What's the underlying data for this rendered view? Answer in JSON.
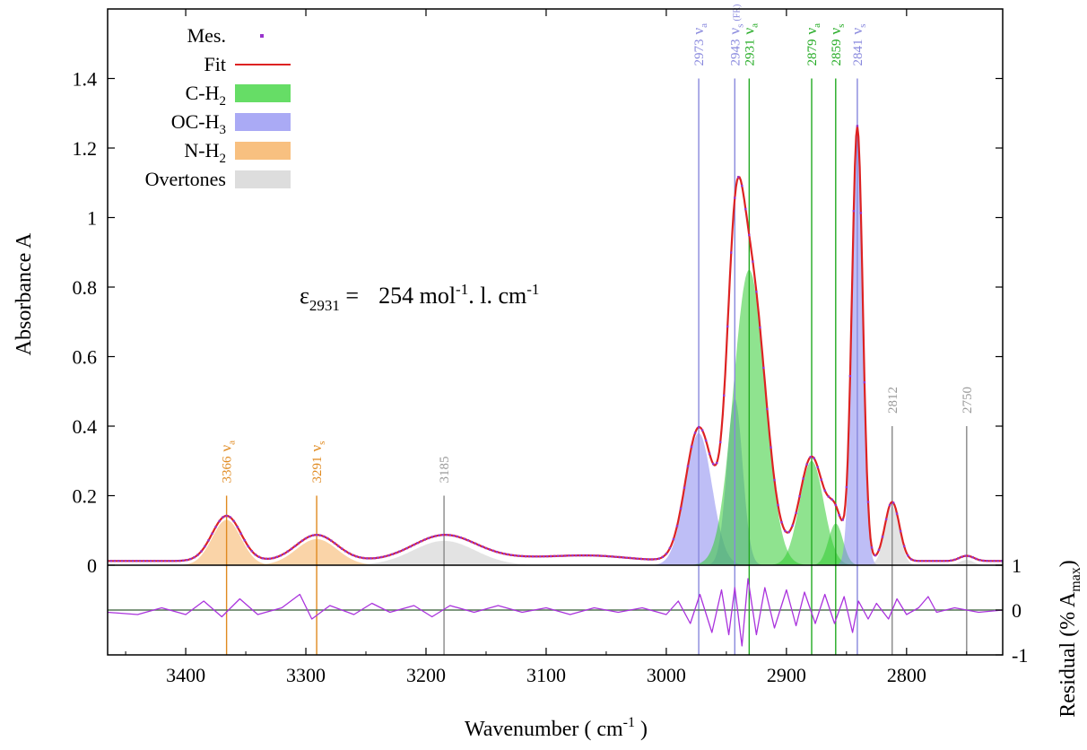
{
  "chart_data": {
    "type": "line",
    "xlabel": "Wavenumber  ( cm",
    "xlabel_sup": "-1",
    "xlabel_end": " )",
    "ylabel": "Absorbance  A",
    "residual_ylabel": "Residual (% A",
    "residual_ylabel_sub": "max",
    "residual_ylabel_end": ")",
    "x_reversed": true,
    "xlim": [
      3465,
      2720
    ],
    "ylim": [
      -0.0,
      1.6
    ],
    "x_ticks": [
      3400,
      3300,
      3200,
      3100,
      3000,
      2900,
      2800
    ],
    "y_ticks": [
      {
        "v": 0,
        "label": "0"
      },
      {
        "v": 0.2,
        "label": "0.2"
      },
      {
        "v": 0.4,
        "label": "0.4"
      },
      {
        "v": 0.6,
        "label": "0.6"
      },
      {
        "v": 0.8,
        "label": "0.8"
      },
      {
        "v": 1.0,
        "label": "1"
      },
      {
        "v": 1.2,
        "label": "1.2"
      },
      {
        "v": 1.4,
        "label": "1.4"
      }
    ],
    "residual_ticks": [
      {
        "v": 1,
        "label": "1"
      },
      {
        "v": 0,
        "label": "0"
      },
      {
        "v": -1,
        "label": "-1"
      }
    ],
    "annotation": {
      "symbol": "ε",
      "sub": "2931",
      "eq": " =",
      "value_pre": "254 mol",
      "sup1": "-1",
      "value_mid": ". l. cm",
      "sup2": "-1"
    },
    "colors": {
      "measure": "#9933cc",
      "fit": "#dd2222",
      "ch2": "#33cc33",
      "och3": "#7777ee",
      "nh2": "#f0a040",
      "overtone": "#bbbbbb",
      "residual": "#aa33dd"
    },
    "legend": {
      "position": "top-left",
      "entries": [
        {
          "label": "Mes.",
          "sub": "",
          "kind": "point",
          "color": "#9933cc"
        },
        {
          "label": "Fit",
          "sub": "",
          "kind": "line",
          "color": "#dd2222"
        },
        {
          "label": "C-H",
          "sub": "2",
          "kind": "fill",
          "color": "#66dd66"
        },
        {
          "label": "OC-H",
          "sub": "3",
          "kind": "fill",
          "color": "#aaaaf5"
        },
        {
          "label": "N-H",
          "sub": "2",
          "kind": "fill",
          "color": "#f8c080"
        },
        {
          "label": "Overtones",
          "sub": "",
          "kind": "fill",
          "color": "#dddddd"
        }
      ]
    },
    "components": [
      {
        "group": "N-H2",
        "center": 3366,
        "amp": 0.13,
        "sigma": 12
      },
      {
        "group": "N-H2",
        "center": 3291,
        "amp": 0.075,
        "sigma": 17
      },
      {
        "group": "Overtones",
        "center": 3185,
        "amp": 0.07,
        "sigma": 26
      },
      {
        "group": "OC-H3",
        "center": 2973,
        "amp": 0.38,
        "sigma": 11
      },
      {
        "group": "OC-H3",
        "center": 2943,
        "amp": 0.48,
        "sigma": 6.5
      },
      {
        "group": "C-H2",
        "center": 2931,
        "amp": 0.85,
        "sigma": 13
      },
      {
        "group": "C-H2",
        "center": 2879,
        "amp": 0.3,
        "sigma": 10
      },
      {
        "group": "C-H2",
        "center": 2859,
        "amp": 0.12,
        "sigma": 6
      },
      {
        "group": "OC-H3",
        "center": 2841,
        "amp": 1.25,
        "sigma": 4.5
      },
      {
        "group": "Overtones",
        "center": 2812,
        "amp": 0.17,
        "sigma": 6
      },
      {
        "group": "Overtones",
        "center": 2750,
        "amp": 0.015,
        "sigma": 6
      }
    ],
    "peak_markers": [
      {
        "x": 3366,
        "top": 0.2,
        "label": "3366",
        "mode": "a",
        "group": "N-H2"
      },
      {
        "x": 3291,
        "top": 0.2,
        "label": "3291",
        "mode": "s",
        "group": "N-H2"
      },
      {
        "x": 3185,
        "top": 0.2,
        "label": "3185",
        "mode": "",
        "group": "Overtones"
      },
      {
        "x": 2973,
        "top": 1.4,
        "label": "2973",
        "mode": "a",
        "group": "OC-H3"
      },
      {
        "x": 2943,
        "top": 1.4,
        "label": "2943",
        "mode": "s",
        "fr": "(FR)",
        "group": "OC-H3"
      },
      {
        "x": 2931,
        "top": 1.4,
        "label": "2931",
        "mode": "a",
        "group": "C-H2"
      },
      {
        "x": 2879,
        "top": 1.4,
        "label": "2879",
        "mode": "a",
        "group": "C-H2"
      },
      {
        "x": 2859,
        "top": 1.4,
        "label": "2859",
        "mode": "s",
        "group": "C-H2"
      },
      {
        "x": 2841,
        "top": 1.4,
        "label": "2841",
        "mode": "s",
        "group": "OC-H3"
      },
      {
        "x": 2812,
        "top": 0.4,
        "label": "2812",
        "mode": "",
        "group": "Overtones"
      },
      {
        "x": 2750,
        "top": 0.4,
        "label": "2750",
        "mode": "",
        "group": "Overtones"
      }
    ],
    "residual": [
      [
        3465,
        -0.05
      ],
      [
        3440,
        -0.1
      ],
      [
        3420,
        0.05
      ],
      [
        3400,
        -0.1
      ],
      [
        3385,
        0.2
      ],
      [
        3370,
        -0.15
      ],
      [
        3355,
        0.25
      ],
      [
        3340,
        -0.1
      ],
      [
        3320,
        0.05
      ],
      [
        3305,
        0.35
      ],
      [
        3295,
        -0.2
      ],
      [
        3280,
        0.1
      ],
      [
        3260,
        -0.1
      ],
      [
        3245,
        0.15
      ],
      [
        3230,
        -0.05
      ],
      [
        3210,
        0.1
      ],
      [
        3195,
        -0.15
      ],
      [
        3180,
        0.1
      ],
      [
        3160,
        -0.05
      ],
      [
        3140,
        0.1
      ],
      [
        3120,
        -0.05
      ],
      [
        3100,
        0.05
      ],
      [
        3080,
        -0.1
      ],
      [
        3060,
        0.05
      ],
      [
        3040,
        -0.05
      ],
      [
        3020,
        0.05
      ],
      [
        3000,
        -0.1
      ],
      [
        2990,
        0.2
      ],
      [
        2980,
        -0.3
      ],
      [
        2972,
        0.35
      ],
      [
        2962,
        -0.5
      ],
      [
        2954,
        0.45
      ],
      [
        2948,
        -0.55
      ],
      [
        2943,
        0.5
      ],
      [
        2937,
        -0.8
      ],
      [
        2932,
        0.7
      ],
      [
        2925,
        -0.55
      ],
      [
        2918,
        0.5
      ],
      [
        2910,
        -0.4
      ],
      [
        2900,
        0.45
      ],
      [
        2892,
        -0.35
      ],
      [
        2885,
        0.4
      ],
      [
        2876,
        -0.3
      ],
      [
        2868,
        0.35
      ],
      [
        2860,
        -0.3
      ],
      [
        2852,
        0.3
      ],
      [
        2845,
        -0.5
      ],
      [
        2840,
        0.2
      ],
      [
        2832,
        -0.2
      ],
      [
        2825,
        0.15
      ],
      [
        2815,
        -0.2
      ],
      [
        2808,
        0.25
      ],
      [
        2800,
        -0.1
      ],
      [
        2790,
        0.05
      ],
      [
        2782,
        0.3
      ],
      [
        2775,
        -0.05
      ],
      [
        2760,
        0.05
      ],
      [
        2740,
        -0.05
      ],
      [
        2720,
        0.0
      ]
    ]
  }
}
